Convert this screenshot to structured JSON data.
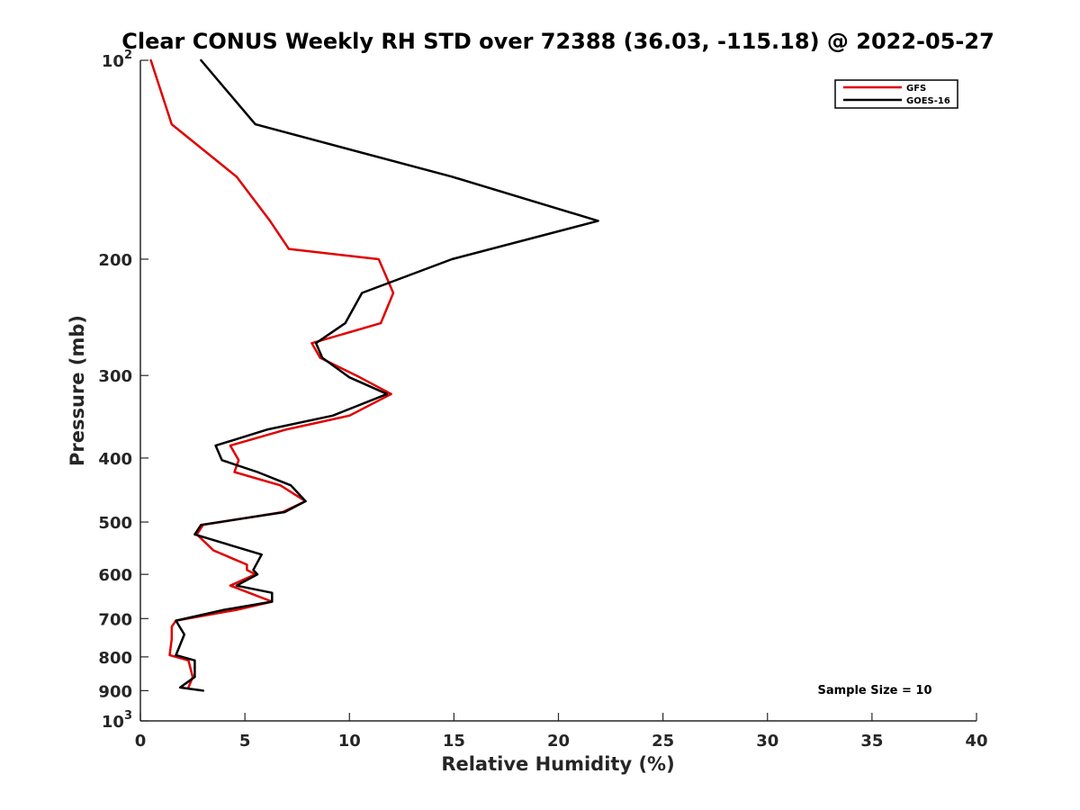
{
  "chart_data": {
    "type": "line",
    "title": "Clear CONUS Weekly RH STD over 72388 (36.03, -115.18) @ 2022-05-27",
    "xlabel": "Relative Humidity (%)",
    "ylabel": "Pressure (mb)",
    "xlim": [
      0,
      40
    ],
    "ylim": [
      100,
      1000
    ],
    "y_scale": "log",
    "y_reversed": true,
    "grid": false,
    "legend_position": "top-right",
    "x_ticks": [
      0,
      5,
      10,
      15,
      20,
      25,
      30,
      35,
      40
    ],
    "x_tick_labels": [
      "0",
      "5",
      "10",
      "15",
      "20",
      "25",
      "30",
      "35",
      "40"
    ],
    "y_ticks": [
      {
        "value": 100,
        "base": "10",
        "exp": "2"
      },
      {
        "value": 200,
        "label": "200"
      },
      {
        "value": 300,
        "label": "300"
      },
      {
        "value": 400,
        "label": "400"
      },
      {
        "value": 500,
        "label": "500"
      },
      {
        "value": 600,
        "label": "600"
      },
      {
        "value": 700,
        "label": "700"
      },
      {
        "value": 800,
        "label": "800"
      },
      {
        "value": 900,
        "label": "900"
      },
      {
        "value": 1000,
        "base": "10",
        "exp": "3"
      }
    ],
    "series": [
      {
        "name": "GFS",
        "color": "#e00000",
        "points": [
          [
            0.5,
            100
          ],
          [
            1.5,
            125
          ],
          [
            4.6,
            150
          ],
          [
            6.2,
            175
          ],
          [
            7.1,
            193
          ],
          [
            11.4,
            200
          ],
          [
            12.1,
            225
          ],
          [
            11.5,
            250
          ],
          [
            8.2,
            268
          ],
          [
            8.6,
            282
          ],
          [
            10.5,
            302
          ],
          [
            12.0,
            320
          ],
          [
            10.0,
            345
          ],
          [
            7.0,
            362
          ],
          [
            4.3,
            383
          ],
          [
            4.7,
            403
          ],
          [
            4.5,
            420
          ],
          [
            6.7,
            440
          ],
          [
            7.9,
            465
          ],
          [
            6.8,
            483
          ],
          [
            3.0,
            505
          ],
          [
            2.7,
            522
          ],
          [
            3.5,
            552
          ],
          [
            5.1,
            580
          ],
          [
            5.1,
            591
          ],
          [
            5.5,
            600
          ],
          [
            4.3,
            624
          ],
          [
            6.3,
            660
          ],
          [
            4.6,
            679
          ],
          [
            1.7,
            705
          ],
          [
            1.5,
            720
          ],
          [
            1.5,
            752
          ],
          [
            1.4,
            795
          ],
          [
            2.3,
            810
          ],
          [
            2.5,
            858
          ],
          [
            2.3,
            890
          ]
        ]
      },
      {
        "name": "GOES-16",
        "color": "#000000",
        "points": [
          [
            2.9,
            100
          ],
          [
            5.5,
            125
          ],
          [
            14.9,
            150
          ],
          [
            21.9,
            175
          ],
          [
            14.9,
            200
          ],
          [
            10.6,
            225
          ],
          [
            9.8,
            250
          ],
          [
            8.4,
            268
          ],
          [
            8.7,
            282
          ],
          [
            10.0,
            302
          ],
          [
            11.8,
            320
          ],
          [
            9.2,
            345
          ],
          [
            6.1,
            362
          ],
          [
            3.6,
            383
          ],
          [
            3.9,
            403
          ],
          [
            5.6,
            420
          ],
          [
            7.2,
            440
          ],
          [
            7.9,
            465
          ],
          [
            6.9,
            483
          ],
          [
            2.9,
            505
          ],
          [
            2.6,
            522
          ],
          [
            5.8,
            560
          ],
          [
            5.4,
            591
          ],
          [
            5.6,
            600
          ],
          [
            4.6,
            624
          ],
          [
            6.3,
            640
          ],
          [
            6.3,
            660
          ],
          [
            4.0,
            679
          ],
          [
            1.7,
            705
          ],
          [
            2.1,
            740
          ],
          [
            1.7,
            795
          ],
          [
            2.6,
            810
          ],
          [
            2.6,
            858
          ],
          [
            1.9,
            890
          ],
          [
            3.0,
            900
          ]
        ]
      }
    ],
    "annotation": "Sample Size = 10"
  }
}
